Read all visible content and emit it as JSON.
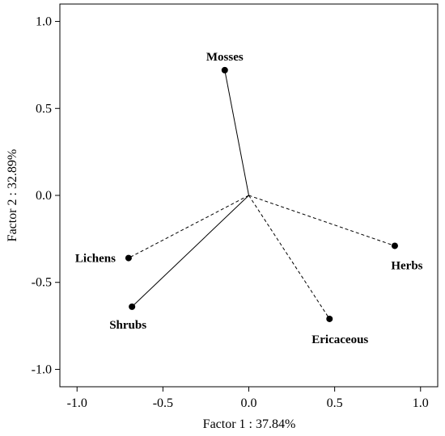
{
  "chart_data": {
    "type": "scatter",
    "title": "",
    "xlabel": "Factor 1 : 37.84%",
    "ylabel": "Factor 2 : 32.89%",
    "xlim": [
      -1.1,
      1.1
    ],
    "ylim": [
      -1.1,
      1.1
    ],
    "x_ticks": [
      "-1.0",
      "-0.5",
      "0.0",
      "0.5",
      "1.0"
    ],
    "y_ticks": [
      "1.0",
      "0.5",
      "0.0",
      "-0.5",
      "-1.0"
    ],
    "grid": false,
    "origin": [
      0,
      0
    ],
    "points": [
      {
        "label": "Mosses",
        "x": -0.14,
        "y": 0.72,
        "line": "solid"
      },
      {
        "label": "Lichens",
        "x": -0.7,
        "y": -0.36,
        "line": "dashed"
      },
      {
        "label": "Shrubs",
        "x": -0.68,
        "y": -0.64,
        "line": "solid"
      },
      {
        "label": "Ericaceous",
        "x": 0.47,
        "y": -0.71,
        "line": "dashed"
      },
      {
        "label": "Herbs",
        "x": 0.85,
        "y": -0.29,
        "line": "dashed"
      }
    ]
  }
}
